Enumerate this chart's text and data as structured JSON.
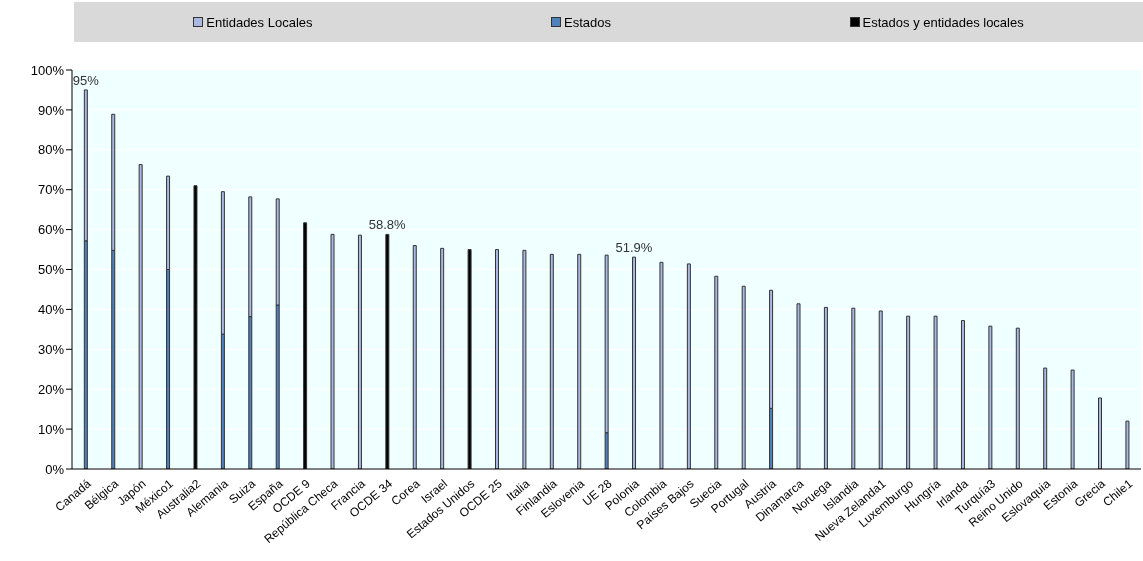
{
  "chart_data": {
    "type": "bar",
    "stacked": true,
    "categories": [
      "Canadá",
      "Bélgica",
      "Japón",
      "México1",
      "Australia2",
      "Alemania",
      "Suiza",
      "España",
      "OCDE 9",
      "República Checa",
      "Francia",
      "OCDE 34",
      "Corea",
      "Israel",
      "Estados Unidos",
      "OCDE 25",
      "Italia",
      "Finlandia",
      "Eslovenia",
      "UE 28",
      "Polonia",
      "Colombia",
      "Países Bajos",
      "Suecia",
      "Portugal",
      "Austria",
      "Dinamarca",
      "Noruega",
      "Islandia",
      "Nueva Zelanda1",
      "Luxemburgo",
      "Hungría",
      "Irlanda",
      "Turquía3",
      "Reino Unido",
      "Eslovaquia",
      "Estonia",
      "Grecia",
      "Chile1"
    ],
    "series": [
      {
        "name": "Estados y entidades locales",
        "color": "#000000",
        "values": [
          null,
          null,
          null,
          null,
          71,
          null,
          null,
          null,
          61.7,
          null,
          null,
          58.8,
          null,
          null,
          55,
          null,
          null,
          null,
          null,
          null,
          null,
          null,
          null,
          null,
          null,
          null,
          null,
          null,
          null,
          null,
          null,
          null,
          null,
          null,
          null,
          null,
          null,
          null,
          null
        ]
      },
      {
        "name": "Estados",
        "color": "#4f81bd",
        "values": [
          57.2,
          54.8,
          null,
          50,
          null,
          33.8,
          38.2,
          41.1,
          null,
          null,
          null,
          null,
          null,
          null,
          null,
          null,
          null,
          null,
          null,
          9.1,
          null,
          null,
          null,
          null,
          null,
          15.2,
          null,
          null,
          null,
          null,
          null,
          null,
          null,
          null,
          null,
          null,
          null,
          null,
          null
        ]
      },
      {
        "name": "Entidades Locales",
        "color": "#a9b9e3",
        "values": [
          37.8,
          34.1,
          76.3,
          23.4,
          null,
          35.7,
          30,
          26.6,
          null,
          58.8,
          58.6,
          null,
          56,
          55.3,
          null,
          55,
          54.8,
          53.8,
          53.8,
          44.5,
          53.1,
          51.8,
          51.4,
          48.3,
          45.8,
          29.6,
          41.4,
          40.5,
          40.3,
          39.6,
          38.3,
          38.3,
          37.2,
          35.8,
          35.3,
          25.3,
          24.8,
          17.8,
          12
        ]
      }
    ],
    "ylim": [
      0,
      100
    ],
    "yticks": [
      {
        "value": 0,
        "label": "0%"
      },
      {
        "value": 10,
        "label": "10%"
      },
      {
        "value": 20,
        "label": "20%"
      },
      {
        "value": 30,
        "label": "30%"
      },
      {
        "value": 40,
        "label": "40%"
      },
      {
        "value": 50,
        "label": "50%"
      },
      {
        "value": 60,
        "label": "60%"
      },
      {
        "value": 70,
        "label": "70%"
      },
      {
        "value": 80,
        "label": "80%"
      },
      {
        "value": 90,
        "label": "90%"
      },
      {
        "value": 100,
        "label": "100%"
      }
    ],
    "grid": "y",
    "legend": "top",
    "annotations": [
      {
        "text": "95%",
        "x": "Canadá",
        "y": 95
      },
      {
        "text": "58.8%",
        "x": "OCDE 34",
        "y": 58.8
      },
      {
        "text": "51.9%",
        "x": "Polonia",
        "y": 53.1
      }
    ]
  }
}
